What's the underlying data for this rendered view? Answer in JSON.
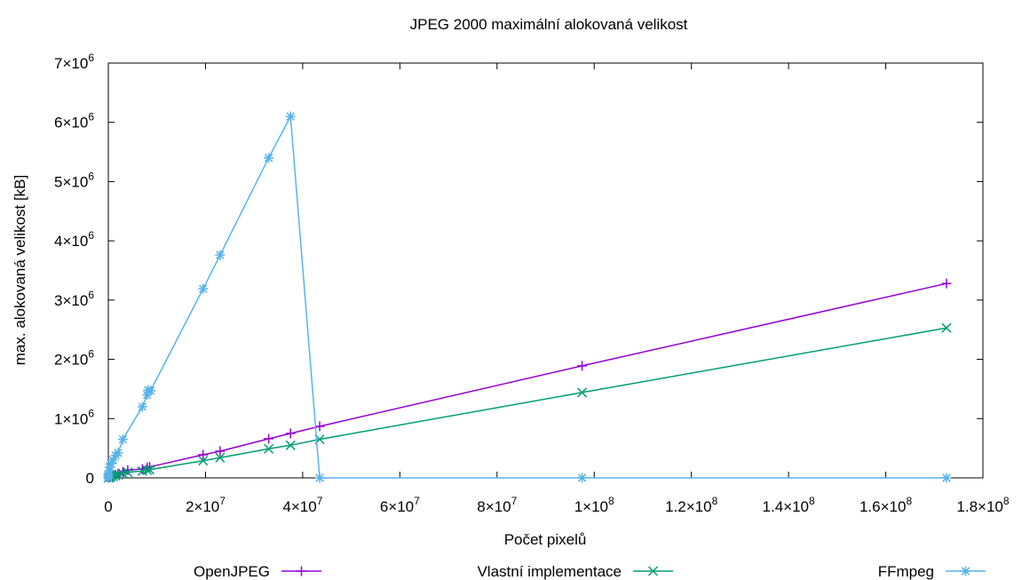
{
  "chart_data": {
    "type": "line",
    "title": "JPEG 2000 maximální alokovaná velikost",
    "xlabel": "Počet pixelů",
    "ylabel": "max. alokovaná velikost [kB]",
    "xlim": [
      0,
      180000000
    ],
    "ylim": [
      0,
      7000000
    ],
    "grid": false,
    "legend_position": "bottom",
    "x_ticks": [
      {
        "value": 0,
        "base": "0",
        "exp": ""
      },
      {
        "value": 20000000,
        "base": "2×10",
        "exp": "7"
      },
      {
        "value": 40000000,
        "base": "4×10",
        "exp": "7"
      },
      {
        "value": 60000000,
        "base": "6×10",
        "exp": "7"
      },
      {
        "value": 80000000,
        "base": "8×10",
        "exp": "7"
      },
      {
        "value": 100000000,
        "base": "1×10",
        "exp": "8"
      },
      {
        "value": 120000000,
        "base": "1.2×10",
        "exp": "8"
      },
      {
        "value": 140000000,
        "base": "1.4×10",
        "exp": "8"
      },
      {
        "value": 160000000,
        "base": "1.6×10",
        "exp": "8"
      },
      {
        "value": 180000000,
        "base": "1.8×10",
        "exp": "8"
      }
    ],
    "y_ticks": [
      {
        "value": 0,
        "base": "0",
        "exp": ""
      },
      {
        "value": 1000000,
        "base": "1×10",
        "exp": "6"
      },
      {
        "value": 2000000,
        "base": "2×10",
        "exp": "6"
      },
      {
        "value": 3000000,
        "base": "3×10",
        "exp": "6"
      },
      {
        "value": 4000000,
        "base": "4×10",
        "exp": "6"
      },
      {
        "value": 5000000,
        "base": "5×10",
        "exp": "6"
      },
      {
        "value": 6000000,
        "base": "6×10",
        "exp": "6"
      },
      {
        "value": 7000000,
        "base": "7×10",
        "exp": "6"
      }
    ],
    "series": [
      {
        "name": "OpenJPEG",
        "color": "#9400d3",
        "marker": "plus",
        "points": [
          [
            0,
            0
          ],
          [
            200000,
            8000
          ],
          [
            500000,
            20000
          ],
          [
            1000000,
            35000
          ],
          [
            1500000,
            50000
          ],
          [
            2000000,
            70000
          ],
          [
            3000000,
            100000
          ],
          [
            4000000,
            130000
          ],
          [
            7000000,
            150000
          ],
          [
            8000000,
            175000
          ],
          [
            8500000,
            185000
          ],
          [
            19500000,
            390000
          ],
          [
            23000000,
            450000
          ],
          [
            33000000,
            660000
          ],
          [
            37500000,
            750000
          ],
          [
            43500000,
            870000
          ],
          [
            97500000,
            1890000
          ],
          [
            172500000,
            3280000
          ]
        ]
      },
      {
        "name": "Vlastní implementace",
        "color": "#009e73",
        "marker": "cross",
        "points": [
          [
            0,
            0
          ],
          [
            200000,
            6000
          ],
          [
            500000,
            15000
          ],
          [
            1000000,
            25000
          ],
          [
            1500000,
            38000
          ],
          [
            2000000,
            50000
          ],
          [
            3000000,
            75000
          ],
          [
            4000000,
            95000
          ],
          [
            7000000,
            115000
          ],
          [
            8000000,
            130000
          ],
          [
            8500000,
            140000
          ],
          [
            19500000,
            290000
          ],
          [
            23000000,
            340000
          ],
          [
            33000000,
            490000
          ],
          [
            37500000,
            550000
          ],
          [
            43500000,
            650000
          ],
          [
            97500000,
            1440000
          ],
          [
            172500000,
            2530000
          ]
        ]
      },
      {
        "name": "FFmpeg",
        "color": "#56b4e9",
        "marker": "star",
        "points": [
          [
            0,
            0
          ],
          [
            0,
            30000
          ],
          [
            0,
            60000
          ],
          [
            200000,
            120000
          ],
          [
            300000,
            180000
          ],
          [
            500000,
            240000
          ],
          [
            1000000,
            300000
          ],
          [
            1500000,
            380000
          ],
          [
            2000000,
            420000
          ],
          [
            3000000,
            650000
          ],
          [
            7000000,
            1200000
          ],
          [
            8000000,
            1400000
          ],
          [
            8200000,
            1480000
          ],
          [
            8700000,
            1470000
          ],
          [
            19500000,
            3190000
          ],
          [
            23000000,
            3760000
          ],
          [
            33000000,
            5400000
          ],
          [
            37500000,
            6100000
          ],
          [
            43500000,
            0
          ],
          [
            97500000,
            0
          ],
          [
            172500000,
            0
          ]
        ]
      }
    ]
  }
}
